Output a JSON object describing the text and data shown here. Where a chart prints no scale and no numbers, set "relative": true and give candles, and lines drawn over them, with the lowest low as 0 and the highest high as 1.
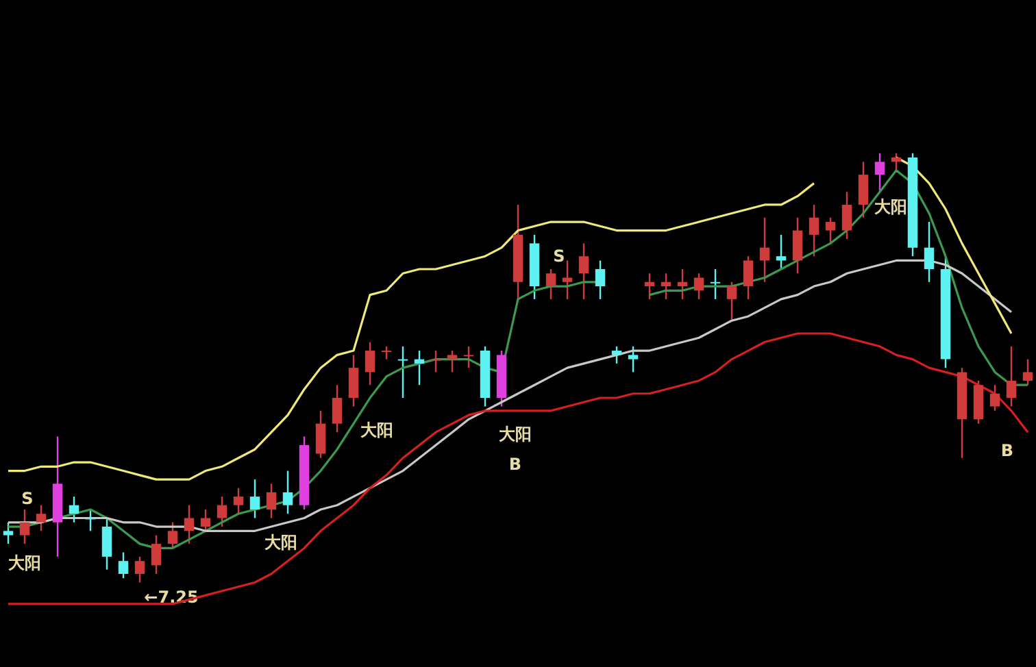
{
  "chart_data": {
    "type": "candlestick",
    "relative": true,
    "legend": false,
    "categories": [
      null,
      null,
      null,
      null,
      null,
      null,
      null,
      null,
      null,
      null,
      null,
      null,
      null,
      null,
      null,
      null,
      null,
      null,
      null,
      null,
      null,
      null,
      null,
      null,
      null,
      null,
      null,
      null,
      null,
      null,
      null,
      null,
      null,
      null,
      null,
      null,
      null,
      null,
      null,
      null,
      null,
      null,
      null,
      null,
      null,
      null,
      null,
      null,
      null,
      null,
      null,
      null,
      null,
      null,
      null,
      null,
      null,
      null,
      null,
      null,
      null,
      null,
      null
    ],
    "ohlc": [
      [
        0.12,
        0.14,
        0.09,
        0.11
      ],
      [
        0.11,
        0.17,
        0.09,
        0.14
      ],
      [
        0.14,
        0.18,
        0.12,
        0.16
      ],
      [
        0.14,
        0.34,
        0.06,
        0.23
      ],
      [
        0.18,
        0.2,
        0.14,
        0.16
      ],
      [
        0.15,
        0.17,
        0.12,
        0.15
      ],
      [
        0.13,
        0.15,
        0.03,
        0.06
      ],
      [
        0.05,
        0.07,
        0.01,
        0.02
      ],
      [
        0.02,
        0.06,
        0,
        0.05
      ],
      [
        0.04,
        0.11,
        0.02,
        0.09
      ],
      [
        0.09,
        0.14,
        0.08,
        0.12
      ],
      [
        0.12,
        0.18,
        0.09,
        0.15
      ],
      [
        0.13,
        0.17,
        0.12,
        0.15
      ],
      [
        0.15,
        0.2,
        0.13,
        0.18
      ],
      [
        0.18,
        0.22,
        0.16,
        0.2
      ],
      [
        0.2,
        0.24,
        0.15,
        0.17
      ],
      [
        0.17,
        0.23,
        0.15,
        0.21
      ],
      [
        0.21,
        0.26,
        0.16,
        0.18
      ],
      [
        0.18,
        0.34,
        0.17,
        0.32
      ],
      [
        0.3,
        0.4,
        0.29,
        0.37
      ],
      [
        0.37,
        0.46,
        0.35,
        0.43
      ],
      [
        0.43,
        0.53,
        0.41,
        0.5
      ],
      [
        0.49,
        0.56,
        0.46,
        0.54
      ],
      [
        0.54,
        0.55,
        0.52,
        0.54
      ],
      [
        0.52,
        0.55,
        0.43,
        0.52
      ],
      [
        0.52,
        0.54,
        0.46,
        0.51
      ],
      [
        0.52,
        0.54,
        0.49,
        0.52
      ],
      [
        0.52,
        0.54,
        0.49,
        0.53
      ],
      [
        0.53,
        0.55,
        0.5,
        0.53
      ],
      [
        0.54,
        0.55,
        0.41,
        0.43
      ],
      [
        0.43,
        0.54,
        0.41,
        0.53
      ],
      [
        0.7,
        0.88,
        0.66,
        0.81
      ],
      [
        0.79,
        0.81,
        0.66,
        0.69
      ],
      [
        0.69,
        0.73,
        0.66,
        0.72
      ],
      [
        0.7,
        0.75,
        0.66,
        0.71
      ],
      [
        0.72,
        0.79,
        0.66,
        0.76
      ],
      [
        0.73,
        0.75,
        0.66,
        0.69
      ],
      [
        0.54,
        0.55,
        0.51,
        0.53
      ],
      [
        0.53,
        0.55,
        0.49,
        0.52
      ],
      [
        0.69,
        0.72,
        0.66,
        0.7
      ],
      [
        0.69,
        0.72,
        0.66,
        0.7
      ],
      [
        0.69,
        0.73,
        0.66,
        0.7
      ],
      [
        0.68,
        0.72,
        0.66,
        0.71
      ],
      [
        0.7,
        0.73,
        0.66,
        0.7
      ],
      [
        0.66,
        0.7,
        0.61,
        0.69
      ],
      [
        0.69,
        0.76,
        0.66,
        0.75
      ],
      [
        0.75,
        0.85,
        0.7,
        0.78
      ],
      [
        0.76,
        0.81,
        0.73,
        0.75
      ],
      [
        0.75,
        0.85,
        0.72,
        0.82
      ],
      [
        0.81,
        0.88,
        0.76,
        0.85
      ],
      [
        0.82,
        0.85,
        0.79,
        0.84
      ],
      [
        0.82,
        0.91,
        0.8,
        0.88
      ],
      [
        0.88,
        0.98,
        0.85,
        0.95
      ],
      [
        0.95,
        1,
        0.91,
        0.98
      ],
      [
        0.98,
        1,
        0.96,
        0.99
      ],
      [
        0.99,
        1,
        0.76,
        0.78
      ],
      [
        0.78,
        0.84,
        0.7,
        0.73
      ],
      [
        0.73,
        0.76,
        0.5,
        0.52
      ],
      [
        0.38,
        0.5,
        0.29,
        0.49
      ],
      [
        0.38,
        0.47,
        0.37,
        0.46
      ],
      [
        0.41,
        0.46,
        0.4,
        0.44
      ],
      [
        0.43,
        0.55,
        0.41,
        0.47
      ],
      [
        0.47,
        0.52,
        0.46,
        0.49
      ]
    ],
    "colors": [
      "#5cf2f2",
      "#d03c3c",
      "#d03c3c",
      "#e040e0",
      "#5cf2f2",
      "#5cf2f2",
      "#5cf2f2",
      "#5cf2f2",
      "#d03c3c",
      "#d03c3c",
      "#d03c3c",
      "#d03c3c",
      "#d03c3c",
      "#d03c3c",
      "#d03c3c",
      "#5cf2f2",
      "#d03c3c",
      "#5cf2f2",
      "#e040e0",
      "#d03c3c",
      "#d03c3c",
      "#d03c3c",
      "#d03c3c",
      "#d03c3c",
      "#5cf2f2",
      "#5cf2f2",
      "#d03c3c",
      "#d03c3c",
      "#d03c3c",
      "#5cf2f2",
      "#e040e0",
      "#d03c3c",
      "#5cf2f2",
      "#d03c3c",
      "#d03c3c",
      "#d03c3c",
      "#5cf2f2",
      "#5cf2f2",
      "#5cf2f2",
      "#d03c3c",
      "#d03c3c",
      "#d03c3c",
      "#d03c3c",
      "#5cf2f2",
      "#d03c3c",
      "#d03c3c",
      "#d03c3c",
      "#5cf2f2",
      "#d03c3c",
      "#d03c3c",
      "#d03c3c",
      "#d03c3c",
      "#d03c3c",
      "#e040e0",
      "#d03c3c",
      "#5cf2f2",
      "#5cf2f2",
      "#5cf2f2",
      "#d03c3c",
      "#d03c3c",
      "#d03c3c",
      "#d03c3c",
      "#d03c3c"
    ],
    "series": [
      {
        "type": "line",
        "color": "#f0e878",
        "values": [
          0.26,
          0.26,
          0.27,
          0.27,
          0.28,
          0.28,
          0.27,
          0.26,
          0.25,
          0.24,
          0.24,
          0.24,
          0.26,
          0.27,
          0.29,
          0.31,
          0.35,
          0.39,
          0.45,
          0.5,
          0.53,
          0.54,
          0.67,
          0.68,
          0.72,
          0.73,
          0.73,
          0.74,
          0.75,
          0.76,
          0.78,
          0.82,
          0.83,
          0.84,
          0.84,
          0.84,
          0.83,
          0.82,
          0.82,
          0.82,
          0.82,
          0.83,
          0.84,
          0.85,
          0.86,
          0.87,
          0.88,
          0.88,
          0.9,
          0.93,
          null,
          null,
          null,
          null,
          0.99,
          0.97,
          0.93,
          0.87,
          0.79,
          0.72,
          0.65,
          0.58,
          null
        ]
      },
      {
        "type": "line",
        "color": "#d42020",
        "values": [
          -0.05,
          -0.05,
          -0.05,
          -0.05,
          -0.05,
          -0.05,
          -0.05,
          -0.05,
          -0.05,
          -0.05,
          -0.05,
          -0.04,
          -0.03,
          -0.02,
          -0.01,
          0,
          0.02,
          0.05,
          0.08,
          0.12,
          0.15,
          0.18,
          0.22,
          0.25,
          0.29,
          0.32,
          0.35,
          0.37,
          0.39,
          0.4,
          0.4,
          0.4,
          0.4,
          0.4,
          0.41,
          0.42,
          0.43,
          0.43,
          0.44,
          0.44,
          0.45,
          0.46,
          0.47,
          0.49,
          0.52,
          0.54,
          0.56,
          0.57,
          0.58,
          0.58,
          0.58,
          0.57,
          0.56,
          0.55,
          0.53,
          0.52,
          0.5,
          0.49,
          0.48,
          0.46,
          0.44,
          0.4,
          0.35
        ]
      },
      {
        "type": "line",
        "color": "#c8c8c8",
        "values": [
          0.14,
          0.14,
          0.14,
          0.15,
          0.15,
          0.15,
          0.15,
          0.14,
          0.14,
          0.13,
          0.13,
          0.13,
          0.12,
          0.12,
          0.12,
          0.12,
          0.13,
          0.14,
          0.15,
          0.17,
          0.18,
          0.2,
          0.22,
          0.24,
          0.26,
          0.29,
          0.32,
          0.35,
          0.38,
          0.4,
          0.42,
          0.44,
          0.46,
          0.48,
          0.5,
          0.51,
          0.52,
          0.53,
          0.54,
          0.54,
          0.55,
          0.56,
          0.57,
          0.59,
          0.61,
          0.62,
          0.64,
          0.66,
          0.67,
          0.69,
          0.7,
          0.72,
          0.73,
          0.74,
          0.75,
          0.75,
          0.75,
          0.74,
          0.72,
          0.69,
          0.66,
          0.63,
          null
        ]
      },
      {
        "type": "line",
        "color": "#3c9a50",
        "values": [
          0.13,
          0.13,
          0.14,
          0.15,
          0.16,
          0.17,
          0.15,
          0.12,
          0.09,
          0.08,
          0.08,
          0.1,
          0.12,
          0.14,
          0.16,
          0.17,
          0.18,
          0.19,
          0.22,
          0.26,
          0.31,
          0.37,
          0.43,
          0.48,
          0.5,
          0.51,
          0.52,
          0.52,
          0.52,
          0.5,
          0.49,
          0.66,
          0.68,
          0.69,
          0.69,
          0.7,
          0.7,
          null,
          null,
          0.67,
          0.68,
          0.68,
          0.69,
          0.69,
          0.69,
          0.7,
          0.71,
          0.73,
          0.75,
          0.77,
          0.79,
          0.82,
          0.86,
          0.91,
          0.96,
          0.93,
          0.86,
          0.76,
          0.64,
          0.55,
          0.49,
          0.46,
          0.46
        ]
      }
    ],
    "annotations": [
      "S",
      "大阳",
      "←7.25",
      "大阳",
      "大阳",
      "S",
      "大阳",
      "B",
      "大阳",
      "B"
    ]
  }
}
